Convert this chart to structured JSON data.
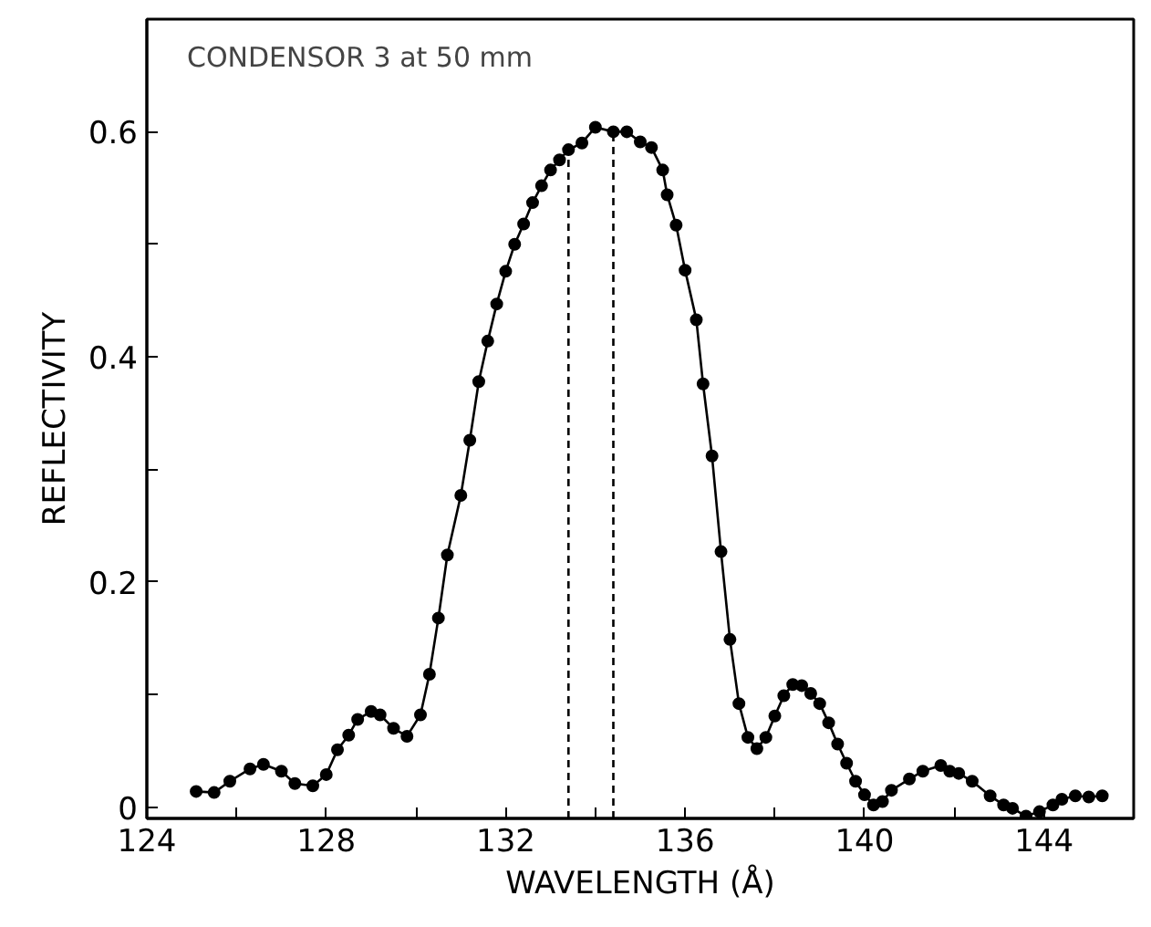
{
  "chart_data": {
    "type": "line",
    "xlabel": "WAVELENGTH (Å)",
    "ylabel": "REFLECTIVITY",
    "annotations": [
      "CONDENSOR 3 at 50 mm"
    ],
    "xlim": [
      124,
      146
    ],
    "ylim": [
      -0.01,
      0.7
    ],
    "xticks": [
      124,
      {
        "value": 126,
        "label": null
      },
      128,
      {
        "value": 130,
        "label": null
      },
      132,
      {
        "value": 134,
        "label": null
      },
      136,
      {
        "value": 138,
        "label": null
      },
      140,
      {
        "value": 142,
        "label": null
      },
      144
    ],
    "yticks": [
      0,
      {
        "value": 0.1,
        "label": null
      },
      0.2,
      {
        "value": 0.3,
        "label": null
      },
      0.4,
      {
        "value": 0.5,
        "label": null
      },
      0.6
    ],
    "grid": false,
    "marker": "circle",
    "line_style": "solid",
    "ref_lines": [
      {
        "axis": "x",
        "value": 133.4,
        "line_style": "dashed",
        "color": "#000000"
      },
      {
        "axis": "x",
        "value": 134.4,
        "line_style": "dashed",
        "color": "#000000"
      }
    ],
    "series": [
      {
        "color": "#000000",
        "x": [
          125.1,
          125.5,
          125.85,
          126.3,
          126.6,
          127.0,
          127.3,
          127.7,
          128.0,
          128.25,
          128.5,
          128.7,
          129.0,
          129.2,
          129.5,
          129.8,
          130.1,
          130.3,
          130.5,
          130.7,
          131.0,
          131.2,
          131.4,
          131.6,
          131.8,
          132.0,
          132.2,
          132.4,
          132.6,
          132.8,
          133.0,
          133.2,
          133.4,
          133.7,
          134.0,
          134.4,
          134.7,
          135.0,
          135.25,
          135.5,
          135.6,
          135.8,
          136.0,
          136.25,
          136.4,
          136.6,
          136.8,
          137.0,
          137.2,
          137.4,
          137.6,
          137.8,
          138.0,
          138.2,
          138.4,
          138.6,
          138.8,
          139.0,
          139.2,
          139.4,
          139.6,
          139.8,
          140.0,
          140.2,
          140.4,
          140.6,
          141.0,
          141.3,
          141.7,
          141.9,
          142.1,
          142.4,
          142.8,
          143.1,
          143.3,
          143.6,
          143.9,
          144.2,
          144.4,
          144.7,
          145.0,
          145.3
        ],
        "values": [
          0.014,
          0.013,
          0.023,
          0.034,
          0.038,
          0.032,
          0.021,
          0.019,
          0.029,
          0.051,
          0.064,
          0.078,
          0.085,
          0.082,
          0.07,
          0.063,
          0.082,
          0.118,
          0.168,
          0.224,
          0.277,
          0.326,
          0.378,
          0.414,
          0.447,
          0.476,
          0.5,
          0.518,
          0.537,
          0.552,
          0.566,
          0.575,
          0.584,
          0.59,
          0.604,
          0.6,
          0.6,
          0.591,
          0.586,
          0.566,
          0.544,
          0.517,
          0.477,
          0.433,
          0.376,
          0.312,
          0.227,
          0.149,
          0.092,
          0.062,
          0.052,
          0.062,
          0.081,
          0.099,
          0.109,
          0.108,
          0.101,
          0.092,
          0.075,
          0.056,
          0.039,
          0.023,
          0.011,
          0.002,
          0.005,
          0.015,
          0.025,
          0.032,
          0.037,
          0.032,
          0.03,
          0.023,
          0.01,
          0.002,
          -0.001,
          -0.008,
          -0.004,
          0.002,
          0.007,
          0.01,
          0.009,
          0.01
        ]
      }
    ]
  }
}
